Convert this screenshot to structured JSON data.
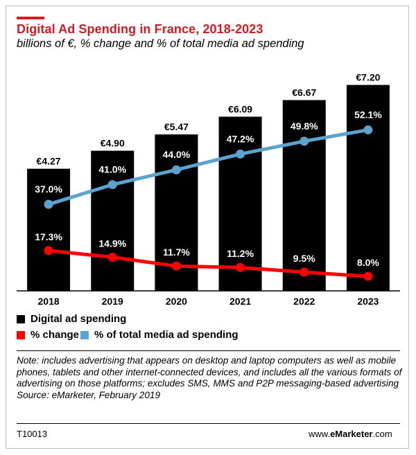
{
  "header": {
    "title": "Digital Ad Spending in France, 2018-2023",
    "subtitle": "billions of €, % change and % of total media ad spending",
    "title_color": "#d71920"
  },
  "chart_data": {
    "type": "bar",
    "categories": [
      "2018",
      "2019",
      "2020",
      "2021",
      "2022",
      "2023"
    ],
    "series": [
      {
        "name": "Digital ad spending",
        "type": "bar",
        "color": "#000000",
        "values": [
          4.27,
          4.9,
          5.47,
          6.09,
          6.67,
          7.2
        ],
        "labels": [
          "€4.27",
          "€4.90",
          "€5.47",
          "€6.09",
          "€6.67",
          "€7.20"
        ]
      },
      {
        "name": "% of total media ad spending",
        "type": "line",
        "color": "#5ba3cf",
        "values": [
          37.0,
          41.0,
          44.0,
          47.2,
          49.8,
          52.1
        ],
        "labels": [
          "37.0%",
          "41.0%",
          "44.0%",
          "47.2%",
          "49.8%",
          "52.1%"
        ]
      },
      {
        "name": "% change",
        "type": "line",
        "color": "#ff0000",
        "values": [
          17.3,
          14.9,
          11.7,
          11.2,
          9.5,
          8.0
        ],
        "labels": [
          "17.3%",
          "14.9%",
          "11.7%",
          "11.2%",
          "9.5%",
          "8.0%"
        ]
      }
    ],
    "legend": [
      {
        "label": "Digital ad spending",
        "color": "#000000"
      },
      {
        "label": "% change",
        "color": "#ff0000"
      },
      {
        "label": "% of total media ad spending",
        "color": "#5ba3cf"
      }
    ],
    "legend_position": "bottom-left",
    "grid": false
  },
  "note": "Note: includes advertising that appears on desktop and laptop computers as well as mobile phones, tablets and other internet-connected devices, and includes all the various formats of advertising on those platforms; excludes SMS, MMS and P2P messaging-based advertising",
  "source": "Source: eMarketer, February 2019",
  "footer": {
    "code": "T10013",
    "site_prefix": "www.",
    "site_brand": "eMarketer",
    "site_suffix": ".com"
  }
}
